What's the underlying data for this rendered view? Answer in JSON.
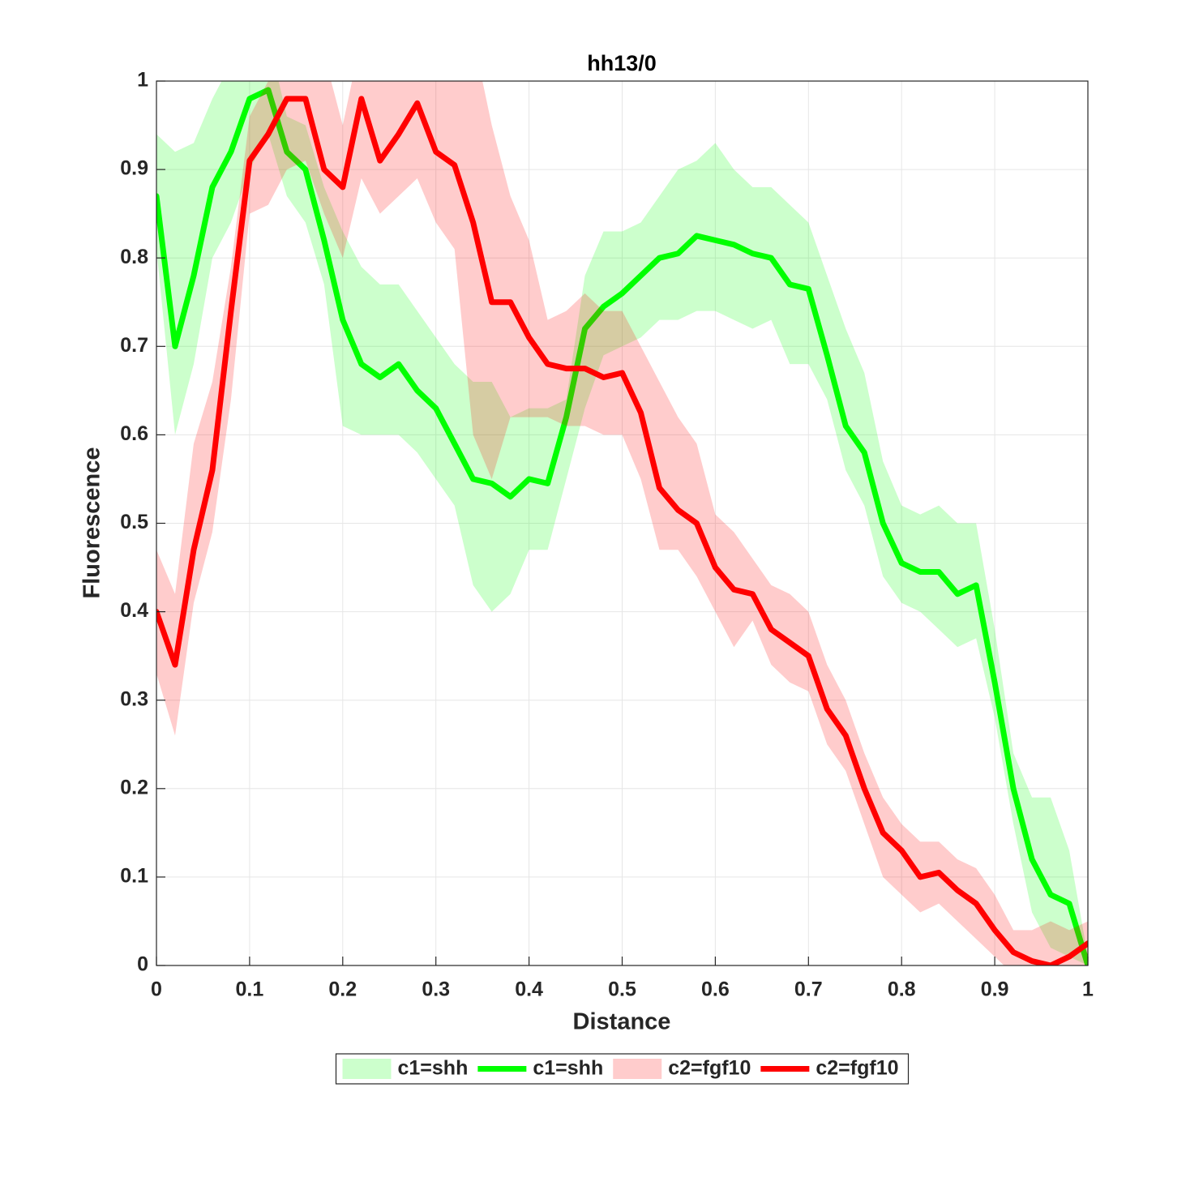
{
  "chart_data": {
    "type": "line",
    "title": "hh13/0",
    "x_label": "Distance",
    "y_label": "Fluorescence",
    "x": [
      0,
      0.02,
      0.04,
      0.06,
      0.08,
      0.1,
      0.12,
      0.14,
      0.16,
      0.18,
      0.2,
      0.22,
      0.24,
      0.26,
      0.28,
      0.3,
      0.32,
      0.34,
      0.36,
      0.38,
      0.4,
      0.42,
      0.44,
      0.46,
      0.48,
      0.5,
      0.52,
      0.54,
      0.56,
      0.58,
      0.6,
      0.62,
      0.64,
      0.66,
      0.68,
      0.7,
      0.72,
      0.74,
      0.76,
      0.78,
      0.8,
      0.82,
      0.84,
      0.86,
      0.88,
      0.9,
      0.92,
      0.94,
      0.96,
      0.98,
      1
    ],
    "series": [
      {
        "name": "c1=shh",
        "kind": "band",
        "color": "#00ff00",
        "alpha": 0.2,
        "lower": [
          0.81,
          0.6,
          0.68,
          0.8,
          0.84,
          0.9,
          0.94,
          0.87,
          0.84,
          0.77,
          0.61,
          0.6,
          0.6,
          0.6,
          0.58,
          0.55,
          0.52,
          0.43,
          0.4,
          0.42,
          0.47,
          0.47,
          0.55,
          0.63,
          0.69,
          0.7,
          0.71,
          0.73,
          0.73,
          0.74,
          0.74,
          0.73,
          0.72,
          0.73,
          0.68,
          0.68,
          0.64,
          0.56,
          0.52,
          0.44,
          0.41,
          0.4,
          0.38,
          0.36,
          0.37,
          0.28,
          0.16,
          0.06,
          0.02,
          0.01,
          0
        ],
        "upper": [
          0.94,
          0.92,
          0.93,
          0.98,
          1.02,
          1.05,
          1.05,
          0.96,
          0.95,
          0.88,
          0.83,
          0.79,
          0.77,
          0.77,
          0.74,
          0.71,
          0.68,
          0.66,
          0.66,
          0.62,
          0.63,
          0.63,
          0.64,
          0.78,
          0.83,
          0.83,
          0.84,
          0.87,
          0.9,
          0.91,
          0.93,
          0.9,
          0.88,
          0.88,
          0.86,
          0.84,
          0.78,
          0.72,
          0.67,
          0.57,
          0.52,
          0.51,
          0.52,
          0.5,
          0.5,
          0.38,
          0.24,
          0.19,
          0.19,
          0.13,
          0.01
        ]
      },
      {
        "name": "c1=shh",
        "kind": "line",
        "color": "#00ff00",
        "values": [
          0.87,
          0.7,
          0.78,
          0.88,
          0.92,
          0.98,
          0.99,
          0.92,
          0.9,
          0.82,
          0.73,
          0.68,
          0.665,
          0.68,
          0.65,
          0.63,
          0.59,
          0.55,
          0.545,
          0.53,
          0.55,
          0.545,
          0.62,
          0.72,
          0.745,
          0.76,
          0.78,
          0.8,
          0.805,
          0.825,
          0.82,
          0.815,
          0.805,
          0.8,
          0.77,
          0.765,
          0.69,
          0.61,
          0.58,
          0.5,
          0.455,
          0.445,
          0.445,
          0.42,
          0.43,
          0.32,
          0.2,
          0.12,
          0.08,
          0.07,
          0
        ]
      },
      {
        "name": "c2=fgf10",
        "kind": "band",
        "color": "#ff0000",
        "alpha": 0.2,
        "lower": [
          0.33,
          0.26,
          0.41,
          0.49,
          0.64,
          0.85,
          0.86,
          0.9,
          0.91,
          0.85,
          0.8,
          0.89,
          0.85,
          0.87,
          0.89,
          0.84,
          0.81,
          0.6,
          0.55,
          0.62,
          0.62,
          0.62,
          0.61,
          0.61,
          0.6,
          0.6,
          0.55,
          0.47,
          0.47,
          0.44,
          0.4,
          0.36,
          0.39,
          0.34,
          0.32,
          0.31,
          0.25,
          0.22,
          0.16,
          0.1,
          0.08,
          0.06,
          0.07,
          0.05,
          0.03,
          0.01,
          -0.01,
          -0.02,
          -0.02,
          0,
          0
        ],
        "upper": [
          0.47,
          0.42,
          0.59,
          0.66,
          0.79,
          0.96,
          1,
          1.05,
          1.05,
          1.03,
          0.95,
          1.05,
          1,
          1.05,
          1.05,
          1.05,
          1.05,
          1.05,
          0.95,
          0.87,
          0.82,
          0.73,
          0.74,
          0.76,
          0.74,
          0.74,
          0.7,
          0.66,
          0.62,
          0.59,
          0.51,
          0.49,
          0.46,
          0.43,
          0.42,
          0.4,
          0.34,
          0.3,
          0.24,
          0.19,
          0.16,
          0.14,
          0.14,
          0.12,
          0.11,
          0.08,
          0.04,
          0.04,
          0.05,
          0.04,
          0.05
        ]
      },
      {
        "name": "c2=fgf10",
        "kind": "line",
        "color": "#ff0000",
        "values": [
          0.4,
          0.34,
          0.47,
          0.56,
          0.74,
          0.91,
          0.94,
          0.98,
          0.98,
          0.9,
          0.88,
          0.98,
          0.91,
          0.94,
          0.975,
          0.92,
          0.905,
          0.84,
          0.75,
          0.75,
          0.71,
          0.68,
          0.675,
          0.675,
          0.665,
          0.67,
          0.625,
          0.54,
          0.515,
          0.5,
          0.45,
          0.425,
          0.42,
          0.38,
          0.365,
          0.35,
          0.29,
          0.26,
          0.2,
          0.15,
          0.13,
          0.1,
          0.105,
          0.085,
          0.07,
          0.04,
          0.015,
          0.005,
          0,
          0.01,
          0.025
        ]
      }
    ],
    "xlim": [
      0,
      1
    ],
    "ylim": [
      0,
      1
    ],
    "xticks": [
      0,
      0.1,
      0.2,
      0.3,
      0.4,
      0.5,
      0.6,
      0.7,
      0.8,
      0.9,
      1
    ],
    "yticks": [
      0,
      0.1,
      0.2,
      0.3,
      0.4,
      0.5,
      0.6,
      0.7,
      0.8,
      0.9,
      1
    ],
    "grid": true,
    "legend_position": "south-outside"
  }
}
